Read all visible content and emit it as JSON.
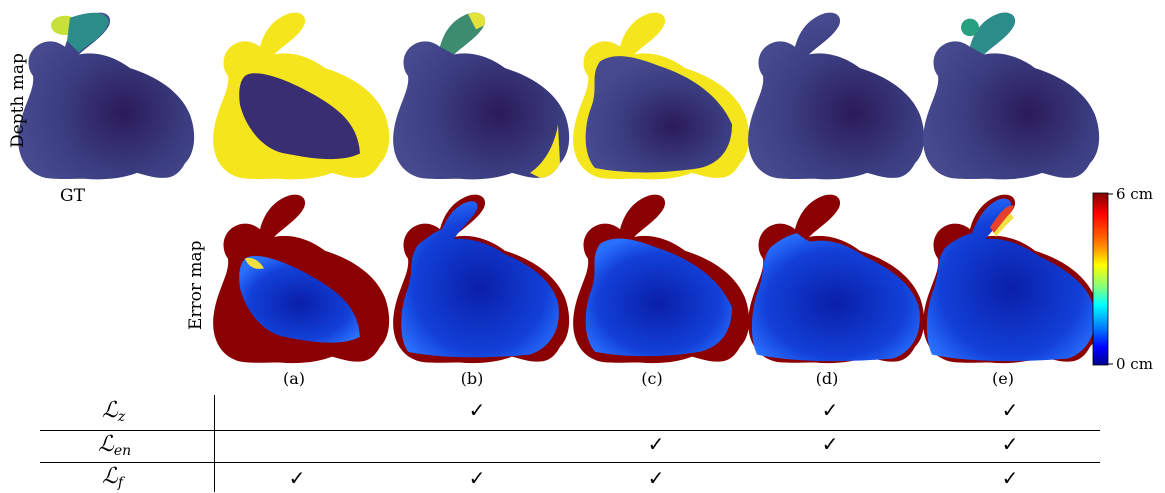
{
  "row_labels": {
    "depth": "Depth map",
    "error": "Error map"
  },
  "gt_label": "GT",
  "panel_labels": [
    "(a)",
    "(b)",
    "(c)",
    "(d)",
    "(e)"
  ],
  "colorbar": {
    "max_label": "6 cm",
    "min_label": "0 cm",
    "colors": [
      "#7f0000",
      "#ff0000",
      "#ff8000",
      "#ffff00",
      "#80ff80",
      "#00ffff",
      "#0080ff",
      "#0000ff",
      "#00008f"
    ]
  },
  "colors": {
    "depth_body": "#3b3b7e",
    "depth_dark": "#2e1f5e",
    "depth_yellow": "#f5e51c",
    "depth_teal": "#2c8c8a",
    "error_red": "#8b0000",
    "error_blue": "#1030c8"
  },
  "table": {
    "losses": [
      {
        "symbol": "ℒ",
        "sub": "z",
        "checks": [
          false,
          true,
          false,
          true,
          true
        ]
      },
      {
        "symbol": "ℒ",
        "sub": "en",
        "checks": [
          false,
          false,
          true,
          true,
          true
        ]
      },
      {
        "symbol": "ℒ",
        "sub": "f",
        "checks": [
          true,
          true,
          true,
          false,
          true
        ]
      }
    ],
    "check_glyph": "✓"
  }
}
